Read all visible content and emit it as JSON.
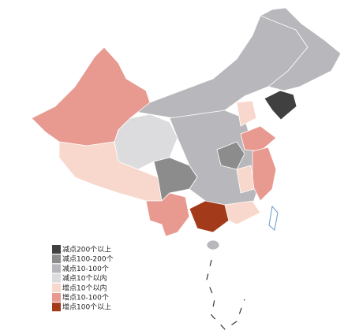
{
  "legend": {
    "items": [
      {
        "label": "减点200个以上",
        "color": "#404040"
      },
      {
        "label": "减点100-200个",
        "color": "#8c8c8c"
      },
      {
        "label": "减点10-100个",
        "color": "#b8b8bc"
      },
      {
        "label": "减点10个以内",
        "color": "#dcdcdf"
      },
      {
        "label": "增点10个以内",
        "color": "#f8d8cc"
      },
      {
        "label": "增点10-100个",
        "color": "#e89a90"
      },
      {
        "label": "增点100个以上",
        "color": "#a33a1a"
      }
    ]
  }
}
